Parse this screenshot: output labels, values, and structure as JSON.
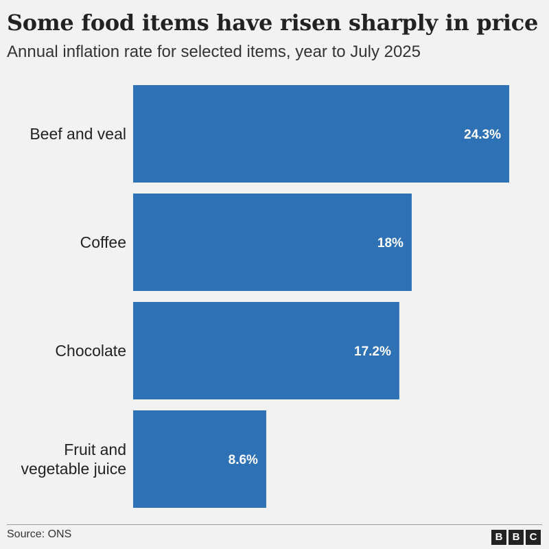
{
  "header": {
    "title": "Some food items have risen sharply in price",
    "subtitle": "Annual inflation rate for selected items, year to July 2025"
  },
  "chart_data": {
    "type": "bar",
    "orientation": "horizontal",
    "categories": [
      "Beef and veal",
      "Coffee",
      "Chocolate",
      "Fruit and vegetable juice"
    ],
    "category_lines": [
      [
        "Beef and veal"
      ],
      [
        "Coffee"
      ],
      [
        "Chocolate"
      ],
      [
        "Fruit and",
        "vegetable juice"
      ]
    ],
    "values": [
      24.3,
      18,
      17.2,
      8.6
    ],
    "value_labels": [
      "24.3%",
      "18%",
      "17.2%",
      "8.6%"
    ],
    "xlim": [
      0,
      24.3
    ],
    "bar_color": "#2e72b5",
    "label_color": "#ffffff",
    "title": "Some food items have risen sharply in price",
    "xlabel": "",
    "ylabel": ""
  },
  "footer": {
    "source": "Source: ONS",
    "logo_letters": [
      "B",
      "B",
      "C"
    ]
  }
}
